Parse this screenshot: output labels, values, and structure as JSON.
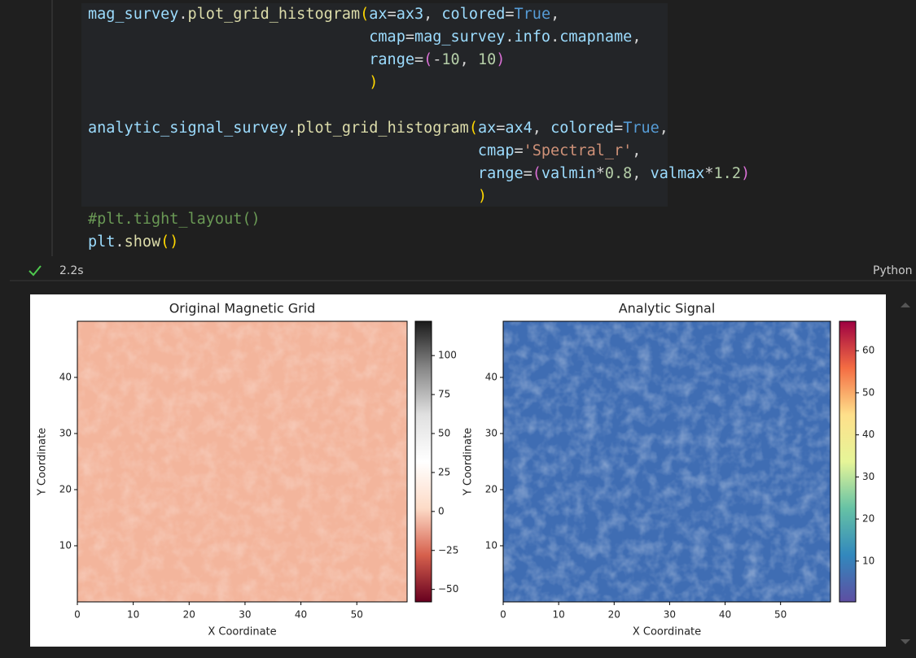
{
  "code": {
    "lines": [
      {
        "tokens": [
          {
            "text": "mag_survey",
            "color": "#9cdcfe"
          },
          {
            "text": ".",
            "color": "#d4d4d4"
          },
          {
            "text": "plot_grid_histogram",
            "color": "#dcdcaa"
          },
          {
            "text": "(",
            "color": "#ffd700"
          },
          {
            "text": "ax",
            "color": "#9cdcfe"
          },
          {
            "text": "=",
            "color": "#d4d4d4"
          },
          {
            "text": "ax3",
            "color": "#9cdcfe"
          },
          {
            "text": ", ",
            "color": "#d4d4d4"
          },
          {
            "text": "colored",
            "color": "#9cdcfe"
          },
          {
            "text": "=",
            "color": "#d4d4d4"
          },
          {
            "text": "True",
            "color": "#569cd6"
          },
          {
            "text": ",",
            "color": "#d4d4d4"
          }
        ]
      },
      {
        "tokens": [
          {
            "text": "                               cmap",
            "color": "#9cdcfe"
          },
          {
            "text": "=",
            "color": "#d4d4d4"
          },
          {
            "text": "mag_survey",
            "color": "#9cdcfe"
          },
          {
            "text": ".",
            "color": "#d4d4d4"
          },
          {
            "text": "info",
            "color": "#9cdcfe"
          },
          {
            "text": ".",
            "color": "#d4d4d4"
          },
          {
            "text": "cmapname",
            "color": "#9cdcfe"
          },
          {
            "text": ",",
            "color": "#d4d4d4"
          }
        ]
      },
      {
        "tokens": [
          {
            "text": "                               range",
            "color": "#9cdcfe"
          },
          {
            "text": "=",
            "color": "#d4d4d4"
          },
          {
            "text": "(",
            "color": "#da70d6"
          },
          {
            "text": "-",
            "color": "#d4d4d4"
          },
          {
            "text": "10",
            "color": "#b5cea8"
          },
          {
            "text": ", ",
            "color": "#d4d4d4"
          },
          {
            "text": "10",
            "color": "#b5cea8"
          },
          {
            "text": ")",
            "color": "#da70d6"
          }
        ]
      },
      {
        "tokens": [
          {
            "text": "                               )",
            "color": "#ffd700"
          }
        ]
      },
      {
        "tokens": []
      },
      {
        "tokens": [
          {
            "text": "analytic_signal_survey",
            "color": "#9cdcfe"
          },
          {
            "text": ".",
            "color": "#d4d4d4"
          },
          {
            "text": "plot_grid_histogram",
            "color": "#dcdcaa"
          },
          {
            "text": "(",
            "color": "#ffd700"
          },
          {
            "text": "ax",
            "color": "#9cdcfe"
          },
          {
            "text": "=",
            "color": "#d4d4d4"
          },
          {
            "text": "ax4",
            "color": "#9cdcfe"
          },
          {
            "text": ", ",
            "color": "#d4d4d4"
          },
          {
            "text": "colored",
            "color": "#9cdcfe"
          },
          {
            "text": "=",
            "color": "#d4d4d4"
          },
          {
            "text": "True",
            "color": "#569cd6"
          },
          {
            "text": ",",
            "color": "#d4d4d4"
          }
        ]
      },
      {
        "tokens": [
          {
            "text": "                                           cmap",
            "color": "#9cdcfe"
          },
          {
            "text": "=",
            "color": "#d4d4d4"
          },
          {
            "text": "'Spectral_r'",
            "color": "#ce9178"
          },
          {
            "text": ",",
            "color": "#d4d4d4"
          }
        ]
      },
      {
        "tokens": [
          {
            "text": "                                           range",
            "color": "#9cdcfe"
          },
          {
            "text": "=",
            "color": "#d4d4d4"
          },
          {
            "text": "(",
            "color": "#da70d6"
          },
          {
            "text": "valmin",
            "color": "#9cdcfe"
          },
          {
            "text": "*",
            "color": "#d4d4d4"
          },
          {
            "text": "0.8",
            "color": "#b5cea8"
          },
          {
            "text": ", ",
            "color": "#d4d4d4"
          },
          {
            "text": "valmax",
            "color": "#9cdcfe"
          },
          {
            "text": "*",
            "color": "#d4d4d4"
          },
          {
            "text": "1.2",
            "color": "#b5cea8"
          },
          {
            "text": ")",
            "color": "#da70d6"
          }
        ]
      },
      {
        "tokens": [
          {
            "text": "                                           )",
            "color": "#ffd700"
          }
        ]
      },
      {
        "tokens": [
          {
            "text": "#plt.tight_layout()",
            "color": "#6a9955"
          }
        ]
      },
      {
        "tokens": [
          {
            "text": "plt",
            "color": "#9cdcfe"
          },
          {
            "text": ".",
            "color": "#d4d4d4"
          },
          {
            "text": "show",
            "color": "#dcdcaa"
          },
          {
            "text": "(",
            "color": "#ffd700"
          },
          {
            "text": ")",
            "color": "#ffd700"
          }
        ]
      }
    ]
  },
  "status": {
    "time": "2.2s",
    "language": "Python"
  },
  "chart_data": [
    {
      "type": "heatmap",
      "title": "Original Magnetic Grid",
      "xlabel": "X Coordinate",
      "ylabel": "Y Coordinate",
      "xlim": [
        0,
        59
      ],
      "ylim": [
        0,
        50
      ],
      "xticks": [
        0,
        10,
        20,
        30,
        40,
        50
      ],
      "yticks": [
        10,
        20,
        30,
        40
      ],
      "colorbar": {
        "cmap": "RdGy",
        "lim": [
          -58,
          122
        ],
        "ticks": [
          {
            "value": -50,
            "label": "−50"
          },
          {
            "value": -25,
            "label": "−25"
          },
          0,
          25,
          50,
          75,
          100,
          0
        ]
      }
    },
    {
      "type": "heatmap",
      "title": "Analytic Signal",
      "xlabel": "X Coordinate",
      "ylabel": "Y Coordinate",
      "xlim": [
        0,
        59
      ],
      "ylim": [
        0,
        50
      ],
      "xticks": [
        0,
        10,
        20,
        30,
        40,
        50
      ],
      "yticks": [
        10,
        20,
        30,
        40
      ],
      "colorbar": {
        "cmap": "Spectral_r",
        "lim": [
          0.3,
          67
        ],
        "ticks": [
          10,
          20,
          30,
          40,
          50,
          60
        ]
      }
    }
  ]
}
